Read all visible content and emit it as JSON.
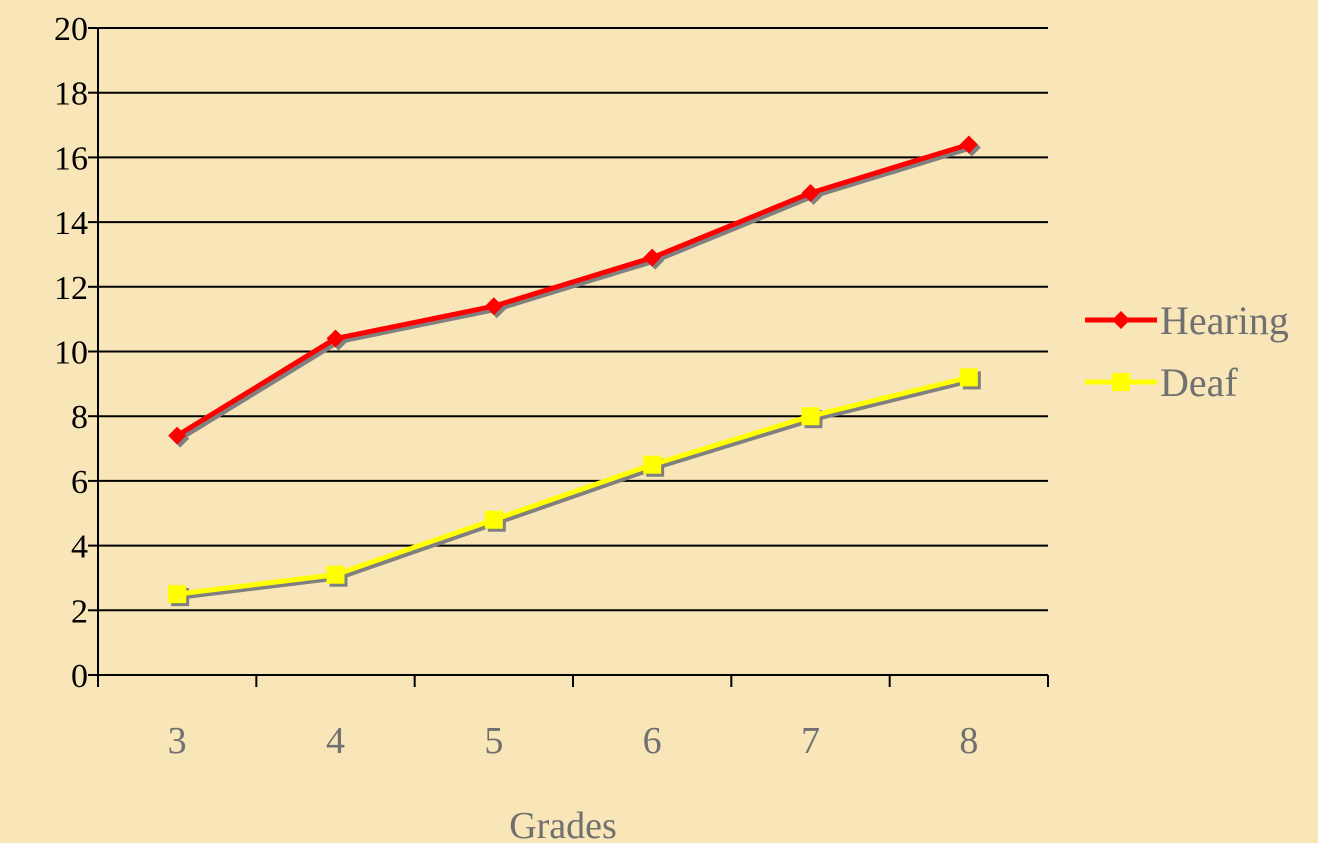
{
  "chart_data": {
    "type": "line",
    "categories": [
      "3",
      "4",
      "5",
      "6",
      "7",
      "8"
    ],
    "series": [
      {
        "name": "Hearing",
        "values": [
          7.4,
          10.4,
          11.4,
          12.9,
          14.9,
          16.4
        ],
        "color": "#ff0000",
        "marker": "diamond"
      },
      {
        "name": "Deaf",
        "values": [
          2.5,
          3.1,
          4.8,
          6.5,
          8.0,
          9.2
        ],
        "color": "#ffff00",
        "marker": "square"
      }
    ],
    "title": "",
    "xlabel": "Grades",
    "ylabel": "",
    "ylim": [
      0,
      20
    ],
    "yticks": [
      "0",
      "2",
      "4",
      "6",
      "8",
      "10",
      "12",
      "14",
      "16",
      "18",
      "20"
    ],
    "grid": true,
    "legend": "right",
    "colors": {
      "background": "#f8e6b8",
      "gridline": "#000000",
      "shadow": "#808080"
    }
  }
}
